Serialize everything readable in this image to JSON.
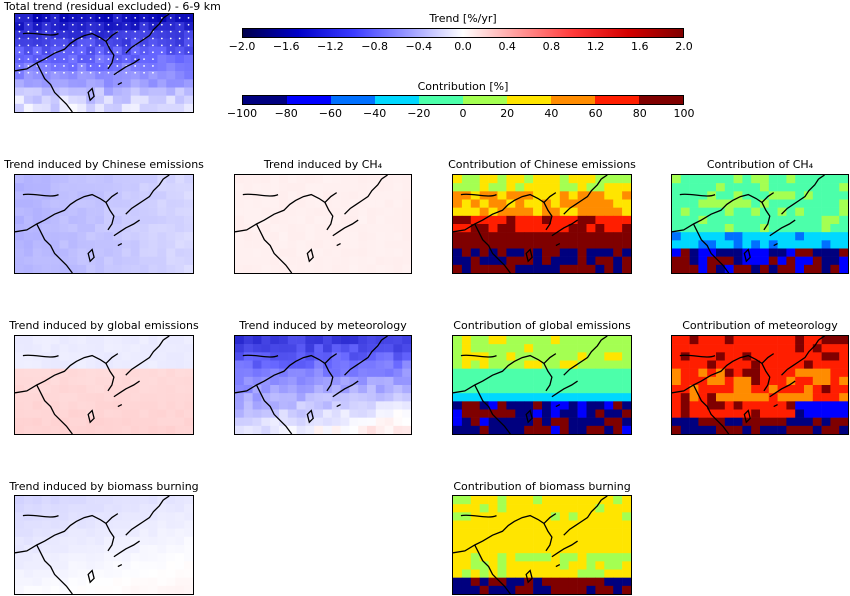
{
  "chart_data": {
    "type": "heatmap",
    "colorbars": [
      {
        "title": "Trend [%/yr]",
        "range": [
          -2.0,
          2.0
        ],
        "ticks": [
          "−2.0",
          "−1.6",
          "−1.2",
          "−0.8",
          "−0.4",
          "0.0",
          "0.4",
          "0.8",
          "1.2",
          "1.6",
          "2.0"
        ],
        "colormap": "seismic-continuous"
      },
      {
        "title": "Contribution [%]",
        "range": [
          -100,
          100
        ],
        "ticks": [
          "−100",
          "−80",
          "−60",
          "−40",
          "−20",
          "0",
          "20",
          "40",
          "60",
          "80",
          "100"
        ],
        "colormap": "jet-discrete-10",
        "colors": [
          "#00007f",
          "#0000ff",
          "#0070ff",
          "#00d8ff",
          "#4cffaa",
          "#a4ff52",
          "#ffe500",
          "#ff8c00",
          "#ff1e00",
          "#7f0000"
        ]
      }
    ],
    "panels": [
      {
        "id": "total",
        "title": "Total trend (residual excluded) - 6-9 km",
        "kind": "trend"
      },
      {
        "id": "chinese_trend",
        "title": "Trend induced by Chinese emissions",
        "kind": "trend"
      },
      {
        "id": "ch4_trend",
        "title": "Trend induced by CH₄",
        "kind": "trend"
      },
      {
        "id": "chinese_contrib",
        "title": "Contribution of Chinese emissions",
        "kind": "contribution"
      },
      {
        "id": "ch4_contrib",
        "title": "Contribution of CH₄",
        "kind": "contribution"
      },
      {
        "id": "global_trend",
        "title": "Trend induced by global emissions",
        "kind": "trend"
      },
      {
        "id": "met_trend",
        "title": "Trend induced by meteorology",
        "kind": "trend"
      },
      {
        "id": "global_contrib",
        "title": "Contribution of global emissions",
        "kind": "contribution"
      },
      {
        "id": "met_contrib",
        "title": "Contribution of meteorology",
        "kind": "contribution"
      },
      {
        "id": "bb_trend",
        "title": "Trend induced by biomass burning",
        "kind": "trend"
      },
      {
        "id": "bb_contrib",
        "title": "Contribution of biomass burning",
        "kind": "contribution"
      }
    ]
  }
}
